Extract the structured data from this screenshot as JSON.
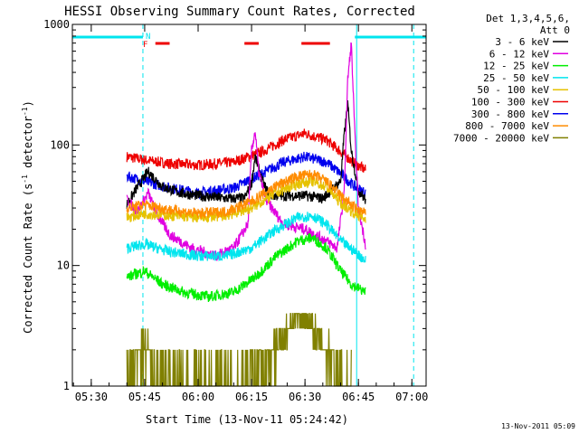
{
  "chart_data": {
    "type": "line",
    "title": "HESSI Observing Summary Count Rates, Corrected",
    "xlabel": "Start Time (13-Nov-11 05:24:42)",
    "ylabel": "Corrected Count Rate (s",
    "ylabel_sup1": "-1",
    "ylabel_mid": " detector",
    "ylabel_sup2": "-1",
    "ylabel_end": ")",
    "yscale": "log",
    "ylim": [
      1,
      1000
    ],
    "xlim": [
      "05:24:42",
      "07:04:00"
    ],
    "x_ticks": [
      "05:30",
      "05:45",
      "06:00",
      "06:15",
      "06:30",
      "06:45",
      "07:00"
    ],
    "y_ticks": [
      "1",
      "10",
      "100",
      "1000"
    ],
    "legend": {
      "placement": "right",
      "header": [
        "Det 1,3,4,5,6,",
        "Att 0"
      ],
      "entries": [
        {
          "label": "3 - 6 keV",
          "color": "#000000"
        },
        {
          "label": "6 - 12 keV",
          "color": "#e000e0"
        },
        {
          "label": "12 - 25 keV",
          "color": "#00ee00"
        },
        {
          "label": "25 - 50 keV",
          "color": "#00e5ee"
        },
        {
          "label": "50 - 100 keV",
          "color": "#e6c200"
        },
        {
          "label": "100 - 300 keV",
          "color": "#ee0000"
        },
        {
          "label": "300 - 800 keV",
          "color": "#0000ee"
        },
        {
          "label": "800 - 7000 keV",
          "color": "#ff8c00"
        },
        {
          "label": "7000 - 20000 keV",
          "color": "#808000"
        }
      ]
    },
    "flags": {
      "night_label": "N",
      "flare_label": "F",
      "night_color": "#00e5ee",
      "flare_color": "#ee0000",
      "night_intervals": [
        [
          "05:24:42",
          "05:44:30"
        ],
        [
          "06:44:00",
          "07:04:00"
        ]
      ],
      "flare_intervals": [
        [
          "05:48:00",
          "05:52:00"
        ],
        [
          "06:13:00",
          "06:17:00"
        ],
        [
          "06:29:00",
          "06:37:00"
        ]
      ]
    },
    "vlines": [
      {
        "time": "05:44:30",
        "color": "#00e5ee",
        "style": "dashed"
      },
      {
        "time": "06:44:30",
        "color": "#00e5ee",
        "style": "solid"
      },
      {
        "time": "07:00:30",
        "color": "#00e5ee",
        "style": "dashed"
      }
    ],
    "series": [
      {
        "name": "100 - 300 keV",
        "color": "#ee0000",
        "points": [
          [
            "05:40",
            80
          ],
          [
            "05:45",
            75
          ],
          [
            "05:52",
            70
          ],
          [
            "06:00",
            68
          ],
          [
            "06:10",
            72
          ],
          [
            "06:18",
            88
          ],
          [
            "06:24",
            110
          ],
          [
            "06:30",
            125
          ],
          [
            "06:36",
            110
          ],
          [
            "06:40",
            88
          ],
          [
            "06:44",
            70
          ],
          [
            "06:47",
            62
          ]
        ]
      },
      {
        "name": "300 - 800 keV",
        "color": "#0000ee",
        "points": [
          [
            "05:40",
            55
          ],
          [
            "05:45",
            50
          ],
          [
            "05:52",
            44
          ],
          [
            "06:00",
            40
          ],
          [
            "06:10",
            44
          ],
          [
            "06:18",
            58
          ],
          [
            "06:24",
            72
          ],
          [
            "06:30",
            80
          ],
          [
            "06:36",
            72
          ],
          [
            "06:40",
            58
          ],
          [
            "06:44",
            45
          ],
          [
            "06:47",
            40
          ]
        ]
      },
      {
        "name": "3 - 6 keV",
        "color": "#000000",
        "points": [
          [
            "05:40",
            32
          ],
          [
            "05:43",
            45
          ],
          [
            "05:46",
            60
          ],
          [
            "05:50",
            45
          ],
          [
            "05:55",
            40
          ],
          [
            "06:00",
            38
          ],
          [
            "06:08",
            36
          ],
          [
            "06:13",
            36
          ],
          [
            "06:15",
            48
          ],
          [
            "06:16",
            80
          ],
          [
            "06:18",
            50
          ],
          [
            "06:20",
            38
          ],
          [
            "06:30",
            38
          ],
          [
            "06:35",
            36
          ],
          [
            "06:40",
            50
          ],
          [
            "06:41",
            120
          ],
          [
            "06:42",
            220
          ],
          [
            "06:43",
            90
          ],
          [
            "06:45",
            42
          ],
          [
            "06:47",
            35
          ]
        ]
      },
      {
        "name": "6 - 12 keV",
        "color": "#e000e0",
        "points": [
          [
            "05:40",
            35
          ],
          [
            "05:43",
            28
          ],
          [
            "05:46",
            40
          ],
          [
            "05:48",
            28
          ],
          [
            "05:52",
            18
          ],
          [
            "05:58",
            14
          ],
          [
            "06:05",
            12
          ],
          [
            "06:10",
            14
          ],
          [
            "06:14",
            22
          ],
          [
            "06:15",
            90
          ],
          [
            "06:16",
            130
          ],
          [
            "06:17",
            60
          ],
          [
            "06:19",
            35
          ],
          [
            "06:24",
            22
          ],
          [
            "06:30",
            20
          ],
          [
            "06:36",
            16
          ],
          [
            "06:39",
            14
          ],
          [
            "06:41",
            40
          ],
          [
            "06:42",
            350
          ],
          [
            "06:43",
            700
          ],
          [
            "06:44",
            120
          ],
          [
            "06:45",
            30
          ],
          [
            "06:47",
            15
          ]
        ]
      },
      {
        "name": "12 - 25 keV",
        "color": "#00ee00",
        "points": [
          [
            "05:40",
            8
          ],
          [
            "05:45",
            9
          ],
          [
            "05:50",
            7
          ],
          [
            "05:56",
            6
          ],
          [
            "06:03",
            5.5
          ],
          [
            "06:10",
            6
          ],
          [
            "06:16",
            8
          ],
          [
            "06:22",
            12
          ],
          [
            "06:28",
            16
          ],
          [
            "06:32",
            17
          ],
          [
            "06:36",
            14
          ],
          [
            "06:40",
            9
          ],
          [
            "06:43",
            7
          ],
          [
            "06:47",
            6
          ]
        ]
      },
      {
        "name": "25 - 50 keV",
        "color": "#00e5ee",
        "points": [
          [
            "05:40",
            14
          ],
          [
            "05:45",
            15
          ],
          [
            "05:52",
            13
          ],
          [
            "06:00",
            12
          ],
          [
            "06:08",
            12
          ],
          [
            "06:15",
            14
          ],
          [
            "06:22",
            20
          ],
          [
            "06:28",
            25
          ],
          [
            "06:32",
            26
          ],
          [
            "06:36",
            22
          ],
          [
            "06:40",
            16
          ],
          [
            "06:44",
            13
          ],
          [
            "06:47",
            11
          ]
        ]
      },
      {
        "name": "50 - 100 keV",
        "color": "#e6c200",
        "points": [
          [
            "05:40",
            25
          ],
          [
            "05:45",
            27
          ],
          [
            "05:52",
            26
          ],
          [
            "06:00",
            25
          ],
          [
            "06:08",
            26
          ],
          [
            "06:15",
            30
          ],
          [
            "06:22",
            40
          ],
          [
            "06:28",
            48
          ],
          [
            "06:32",
            50
          ],
          [
            "06:36",
            45
          ],
          [
            "06:40",
            33
          ],
          [
            "06:44",
            27
          ],
          [
            "06:47",
            24
          ]
        ]
      },
      {
        "name": "800 - 7000 keV",
        "color": "#ff8c00",
        "points": [
          [
            "05:40",
            30
          ],
          [
            "05:45",
            32
          ],
          [
            "05:52",
            29
          ],
          [
            "06:00",
            27
          ],
          [
            "06:08",
            28
          ],
          [
            "06:15",
            34
          ],
          [
            "06:22",
            46
          ],
          [
            "06:28",
            55
          ],
          [
            "06:32",
            57
          ],
          [
            "06:36",
            50
          ],
          [
            "06:40",
            38
          ],
          [
            "06:44",
            30
          ],
          [
            "06:47",
            27
          ]
        ]
      },
      {
        "name": "7000 - 20000 keV",
        "color": "#808000",
        "points": [
          [
            "05:40",
            1.5
          ],
          [
            "05:45",
            2
          ],
          [
            "05:50",
            1.2
          ],
          [
            "06:00",
            1
          ],
          [
            "06:10",
            1
          ],
          [
            "06:19",
            1.5
          ],
          [
            "06:22",
            2.2
          ],
          [
            "06:25",
            3
          ],
          [
            "06:28",
            3.8
          ],
          [
            "06:31",
            3.5
          ],
          [
            "06:34",
            2.5
          ],
          [
            "06:37",
            1.8
          ],
          [
            "06:40",
            1.2
          ],
          [
            "06:43",
            1
          ]
        ]
      }
    ]
  },
  "footer": {
    "timestamp": "13-Nov-2011 05:09"
  }
}
